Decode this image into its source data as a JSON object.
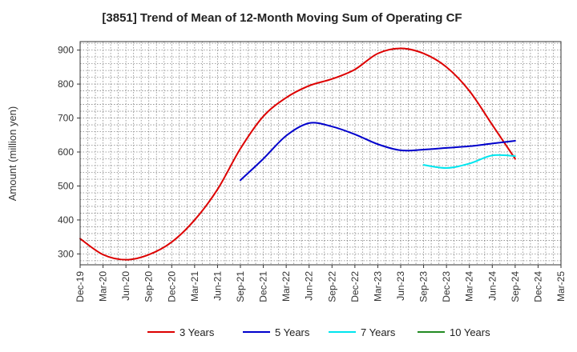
{
  "chart_data": {
    "type": "line",
    "title": "[3851]  Trend of Mean of 12-Month Moving Sum of Operating CF",
    "xlabel": "",
    "ylabel": "Amount (million yen)",
    "ylim": [
      268,
      925
    ],
    "yticks": [
      300,
      400,
      500,
      600,
      700,
      800,
      900
    ],
    "grid": true,
    "legend_position": "bottom",
    "categories": [
      "Dec-19",
      "Mar-20",
      "Jun-20",
      "Sep-20",
      "Dec-20",
      "Mar-21",
      "Jun-21",
      "Sep-21",
      "Dec-21",
      "Mar-22",
      "Jun-22",
      "Sep-22",
      "Dec-22",
      "Mar-23",
      "Jun-23",
      "Sep-23",
      "Dec-23",
      "Mar-24",
      "Jun-24",
      "Sep-24",
      "Dec-24",
      "Mar-25"
    ],
    "series": [
      {
        "name": "3 Years",
        "color": "#dd0000",
        "values": [
          345,
          298,
          283,
          298,
          335,
          400,
          490,
          610,
          705,
          760,
          795,
          815,
          843,
          890,
          905,
          890,
          850,
          780,
          680,
          580,
          null,
          null
        ]
      },
      {
        "name": "5 Years",
        "color": "#0000cc",
        "values": [
          null,
          null,
          null,
          null,
          null,
          null,
          null,
          517,
          580,
          648,
          685,
          675,
          652,
          623,
          605,
          607,
          612,
          617,
          625,
          633,
          null,
          null
        ]
      },
      {
        "name": "7 Years",
        "color": "#00e5ee",
        "values": [
          null,
          null,
          null,
          null,
          null,
          null,
          null,
          null,
          null,
          null,
          null,
          null,
          null,
          null,
          null,
          562,
          553,
          566,
          590,
          588,
          null,
          null
        ]
      },
      {
        "name": "10 Years",
        "color": "#228b22",
        "values": [
          null,
          null,
          null,
          null,
          null,
          null,
          null,
          null,
          null,
          null,
          null,
          null,
          null,
          null,
          null,
          null,
          null,
          null,
          null,
          null,
          null,
          null
        ]
      }
    ]
  }
}
